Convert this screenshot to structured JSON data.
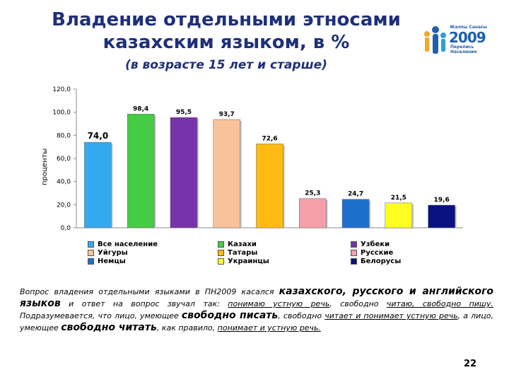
{
  "title_line1": "Владение отдельными этносами",
  "title_line2": "казахским языком, в %",
  "subtitle": "(в возрасте 15 лет и старше)",
  "logo": {
    "top_text": "Жалпы Санағы",
    "year": "2009",
    "bottom_text": "Перепись Населения"
  },
  "chart_data": {
    "type": "bar",
    "ylabel": "проценты",
    "ylim": [
      0,
      120
    ],
    "yticks": [
      "0,0",
      "20,0",
      "40,0",
      "60,0",
      "80,0",
      "100,0",
      "120,0"
    ],
    "grid": false,
    "legend_position": "bottom",
    "series": [
      {
        "name": "Все население",
        "value": 74.0,
        "label": "74,0",
        "color": "#33aaee"
      },
      {
        "name": "Казахи",
        "value": 98.4,
        "label": "98,4",
        "color": "#44cc44"
      },
      {
        "name": "Узбеки",
        "value": 95.5,
        "label": "95,5",
        "color": "#7733aa"
      },
      {
        "name": "Уйгуры",
        "value": 93.7,
        "label": "93,7",
        "color": "#f9c29a"
      },
      {
        "name": "Татары",
        "value": 72.6,
        "label": "72,6",
        "color": "#ffbb11"
      },
      {
        "name": "Русские",
        "value": 25.3,
        "label": "25,3",
        "color": "#f49fa9"
      },
      {
        "name": "Немцы",
        "value": 24.7,
        "label": "24,7",
        "color": "#1e6fcc"
      },
      {
        "name": "Украинцы",
        "value": 21.5,
        "label": "21,5",
        "color": "#ffff22"
      },
      {
        "name": "Белорусы",
        "value": 19.6,
        "label": "19,6",
        "color": "#0a1180"
      }
    ]
  },
  "footnote": {
    "p1": "Вопрос владения отдельными языками в ПН2009  касался ",
    "b1": "казахского, русского и английского языков",
    "p2": " и ответ на вопрос  звучал так: ",
    "u1": "понимаю устную речь",
    "p3": ", свободно ",
    "u2": "читаю, свободно пишу.",
    "p4": "  Подразумевается, что лицо, умеющее ",
    "b2": "свободно писать",
    "p5": ", свободно ",
    "u3": "читает и понимает устную речь",
    "p6": ", а лицо, умеющее ",
    "b3": "свободно читать",
    "p7": ", как правило, ",
    "u4": "понимает и устную речь.",
    "p8": ""
  },
  "page_number": "22"
}
